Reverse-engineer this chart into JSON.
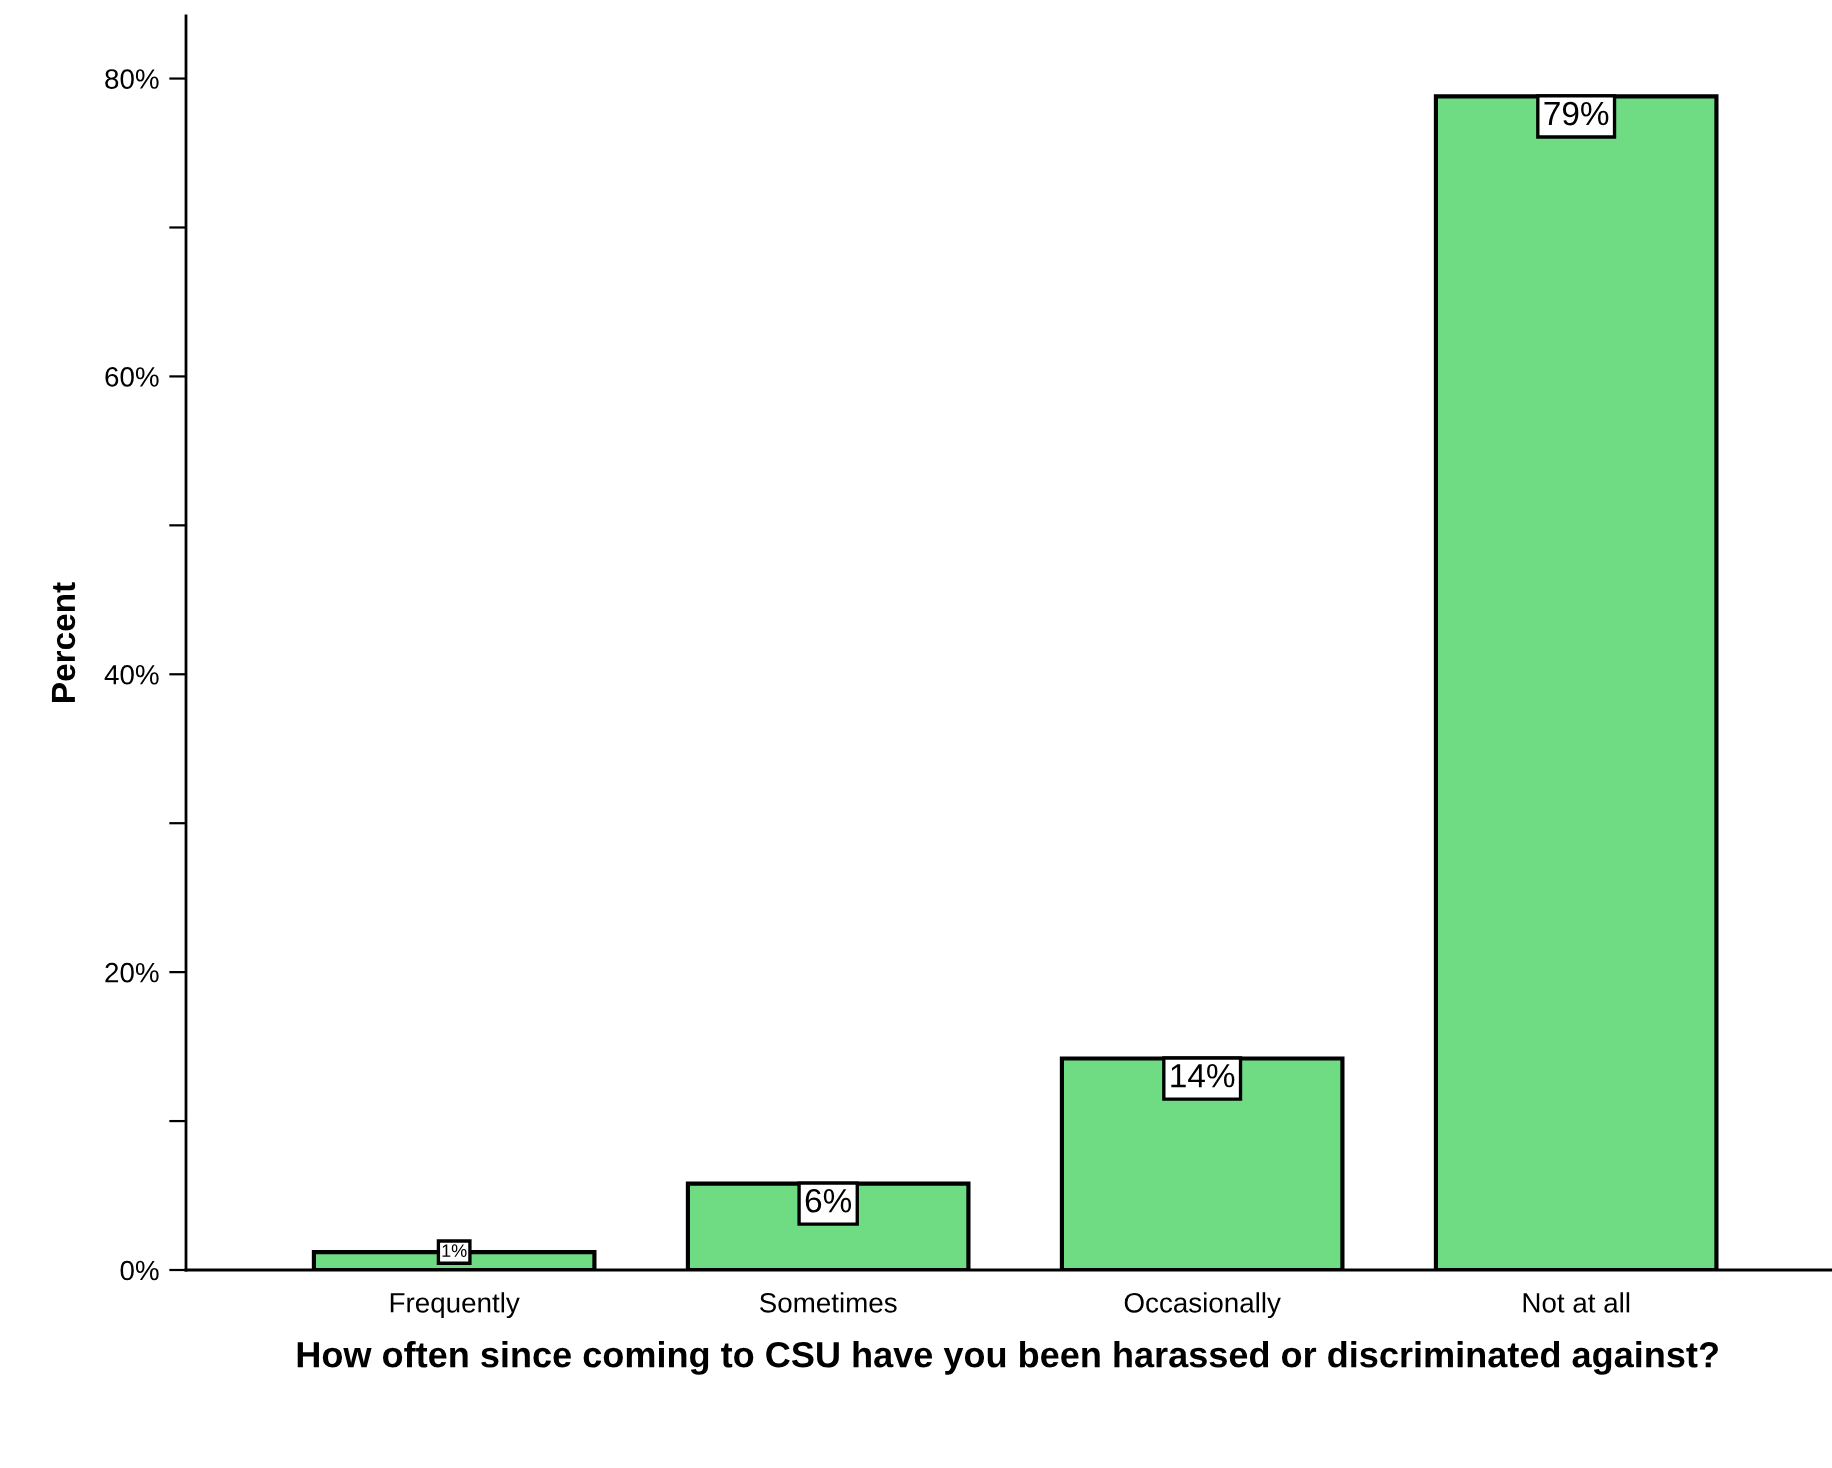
{
  "chart_data": {
    "type": "bar",
    "xlabel": "How often since coming to CSU have you been harassed or discriminated against?",
    "ylabel": "Percent",
    "categories": [
      "Frequently",
      "Sometimes",
      "Occasionally",
      "Not at all"
    ],
    "values": [
      1.2,
      5.8,
      14.2,
      78.8
    ],
    "value_labels": [
      "1%",
      "6%",
      "14%",
      "79%"
    ],
    "color": "#6fdc84",
    "ylim": [
      0,
      84.2
    ],
    "yticks": [
      {
        "value": 0,
        "label": "0%"
      },
      {
        "value": 10,
        "label": null
      },
      {
        "value": 20,
        "label": "20%"
      },
      {
        "value": 30,
        "label": null
      },
      {
        "value": 40,
        "label": "40%"
      },
      {
        "value": 50,
        "label": null
      },
      {
        "value": 60,
        "label": "60%"
      },
      {
        "value": 70,
        "label": null
      },
      {
        "value": 80,
        "label": "80%"
      }
    ],
    "grid": false,
    "legend": false
  }
}
